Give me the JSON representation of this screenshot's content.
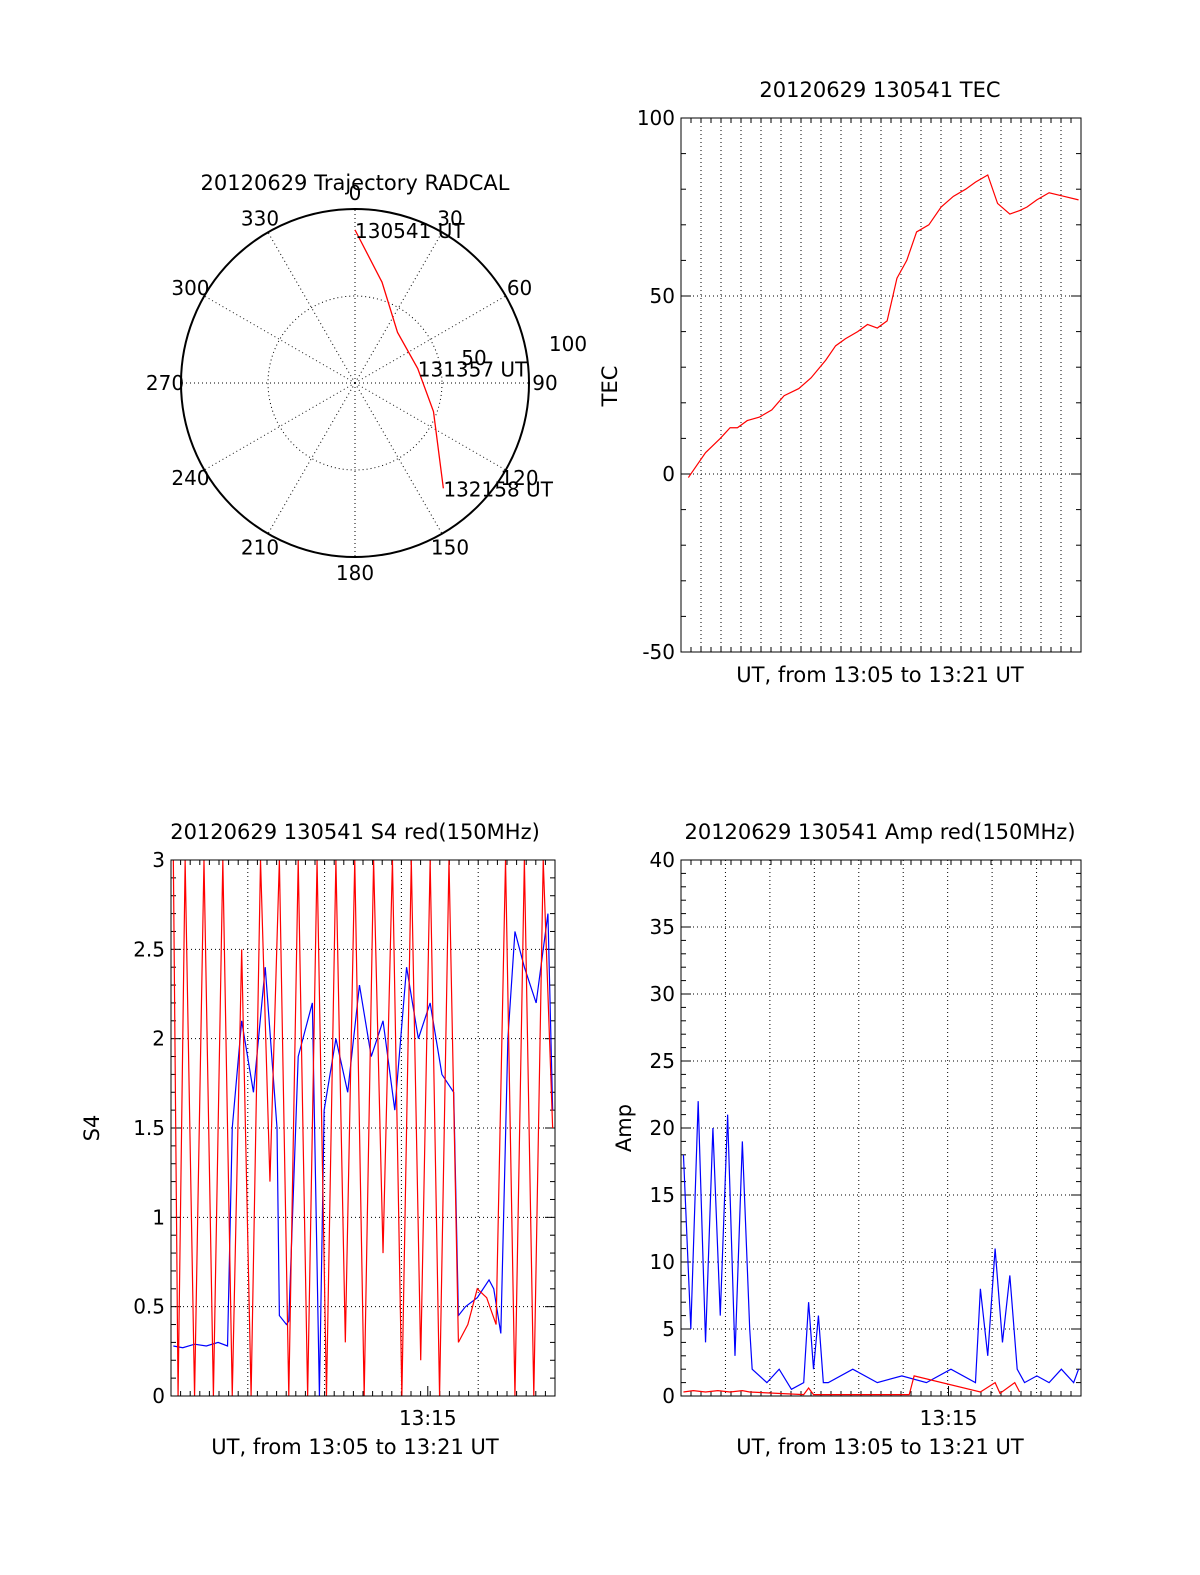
{
  "chart_data": [
    {
      "id": "trajectory",
      "type": "polar",
      "title": "20120629 Trajectory RADCAL",
      "angle_labels": [
        "0",
        "30",
        "60",
        "90",
        "120",
        "150",
        "180",
        "210",
        "240",
        "270",
        "300",
        "330"
      ],
      "radius_labels": [
        "50",
        "100"
      ],
      "rlim": [
        0,
        100
      ],
      "grid": true,
      "line_color": "#ff0000",
      "trajectory": [
        {
          "az": 0,
          "r": 88
        },
        {
          "az": 15,
          "r": 60
        },
        {
          "az": 40,
          "r": 38
        },
        {
          "az": 77,
          "r": 37
        },
        {
          "az": 110,
          "r": 48
        },
        {
          "az": 140,
          "r": 79
        }
      ],
      "annotations": [
        {
          "text": "130541 UT",
          "az": 0,
          "r": 88
        },
        {
          "text": "131357 UT",
          "az": 77,
          "r": 37
        },
        {
          "text": "132158 UT",
          "az": 140,
          "r": 79
        }
      ]
    },
    {
      "id": "tec",
      "type": "line",
      "title": "20120629 130541 TEC",
      "xlabel": "UT, from 13:05 to 13:21 UT",
      "ylabel": "TEC",
      "xlim": [
        0,
        16.3
      ],
      "ylim": [
        -50,
        100
      ],
      "yticks": [
        -50,
        0,
        50,
        100
      ],
      "grid": true,
      "series": [
        {
          "color": "#ff0000",
          "x": [
            0.3,
            1.0,
            1.6,
            2.0,
            2.3,
            2.7,
            3.2,
            3.7,
            4.2,
            4.8,
            5.3,
            5.9,
            6.3,
            6.7,
            7.2,
            7.6,
            8.0,
            8.4,
            8.8,
            9.2,
            9.6,
            10.1,
            10.6,
            11.1,
            11.6,
            12.0,
            12.5,
            12.9,
            13.4,
            13.8,
            14.1,
            14.5,
            15.0,
            15.6,
            16.2
          ],
          "y": [
            -1,
            6,
            10,
            13,
            13,
            15,
            16,
            18,
            22,
            24,
            27,
            32,
            36,
            38,
            40,
            42,
            41,
            43,
            55,
            60,
            68,
            70,
            75,
            78,
            80,
            82,
            84,
            76,
            73,
            74,
            75,
            77,
            79,
            78,
            77
          ]
        }
      ]
    },
    {
      "id": "s4",
      "type": "line",
      "title": "20120629 130541 S4 red(150MHz)",
      "xlabel": "UT, from 13:05 to 13:21 UT",
      "ylabel": "S4",
      "xlim": [
        0,
        16.3
      ],
      "ylim": [
        0,
        3
      ],
      "xticks": [
        {
          "value": 10.9,
          "label": "13:15"
        }
      ],
      "yticks": [
        0,
        0.5,
        1,
        1.5,
        2,
        2.5,
        3
      ],
      "grid": true,
      "series": [
        {
          "color": "#0000ff",
          "x": [
            0.1,
            0.5,
            1.0,
            1.5,
            2.0,
            2.4,
            2.6,
            3.0,
            3.5,
            4.0,
            4.5,
            4.6,
            4.9,
            5.0,
            5.4,
            6.0,
            6.3,
            6.5,
            7.0,
            7.5,
            8.0,
            8.5,
            9.0,
            9.5,
            10.0,
            10.5,
            11.0,
            11.5,
            12.0,
            12.2,
            12.5,
            13.0,
            13.5,
            13.7,
            14.0,
            14.3,
            14.6,
            15.0,
            15.5,
            16.0,
            16.2
          ],
          "y": [
            0.28,
            0.27,
            0.29,
            0.28,
            0.3,
            0.28,
            1.5,
            2.1,
            1.7,
            2.4,
            1.5,
            0.45,
            0.4,
            0.42,
            1.9,
            2.2,
            0.0,
            1.6,
            2.0,
            1.7,
            2.3,
            1.9,
            2.1,
            1.6,
            2.4,
            2.0,
            2.2,
            1.8,
            1.7,
            0.45,
            0.5,
            0.55,
            0.65,
            0.6,
            0.35,
            2.0,
            2.6,
            2.4,
            2.2,
            2.7,
            1.6
          ]
        },
        {
          "color": "#ff0000",
          "x": [
            0.1,
            0.3,
            0.6,
            1.0,
            1.4,
            1.8,
            2.2,
            2.6,
            3.0,
            3.4,
            3.8,
            4.2,
            4.6,
            5.0,
            5.4,
            5.8,
            6.2,
            6.6,
            7.0,
            7.4,
            7.8,
            8.2,
            8.6,
            9.0,
            9.4,
            9.8,
            10.2,
            10.6,
            11.0,
            11.4,
            11.8,
            12.2,
            12.6,
            13.0,
            13.4,
            13.8,
            14.2,
            14.6,
            15.0,
            15.4,
            15.8,
            16.2
          ],
          "y": [
            3,
            0,
            3,
            0,
            3,
            0,
            3,
            0,
            2.5,
            0,
            3,
            1.2,
            3,
            0,
            3,
            0,
            3,
            0,
            3,
            0.3,
            3,
            0,
            3,
            0.8,
            3,
            0,
            3,
            0.2,
            3,
            0,
            3,
            0.3,
            0.4,
            0.6,
            0.55,
            0.4,
            3,
            0,
            3,
            0,
            3,
            1.5
          ]
        }
      ]
    },
    {
      "id": "amp",
      "type": "line",
      "title": "20120629 130541 Amp red(150MHz)",
      "xlabel": "UT, from 13:05 to 13:21 UT",
      "ylabel": "Amp",
      "xlim": [
        0,
        16.3
      ],
      "ylim": [
        0,
        40
      ],
      "xticks": [
        {
          "value": 10.9,
          "label": "13:15"
        }
      ],
      "yticks": [
        0,
        5,
        10,
        15,
        20,
        25,
        30,
        35,
        40
      ],
      "grid": true,
      "series": [
        {
          "color": "#0000ff",
          "x": [
            0.1,
            0.4,
            0.7,
            1.0,
            1.3,
            1.6,
            1.9,
            2.2,
            2.5,
            2.8,
            2.9,
            3.5,
            4.0,
            4.5,
            5.0,
            5.2,
            5.4,
            5.6,
            5.8,
            6.0,
            7.0,
            8.0,
            9.0,
            10.0,
            11.0,
            12.0,
            12.2,
            12.5,
            12.8,
            13.1,
            13.4,
            13.7,
            14.0,
            14.5,
            15.0,
            15.5,
            16.0,
            16.2
          ],
          "y": [
            18,
            5,
            22,
            4,
            20,
            6,
            21,
            3,
            19,
            5,
            2,
            1,
            2,
            0.5,
            1,
            7,
            2,
            6,
            1,
            1,
            2,
            1,
            1.5,
            1,
            2,
            1,
            8,
            3,
            11,
            4,
            9,
            2,
            1,
            1.5,
            1,
            2,
            1,
            2
          ]
        },
        {
          "color": "#ff0000",
          "x": [
            0.1,
            0.5,
            1.0,
            1.5,
            2.0,
            2.5,
            2.8,
            5.0,
            5.2,
            5.4,
            9.3,
            9.5,
            12.2,
            12.8,
            13.0,
            13.6,
            13.8
          ],
          "y": [
            0.3,
            0.4,
            0.3,
            0.4,
            0.3,
            0.4,
            0.3,
            0.1,
            0.6,
            0.1,
            0.1,
            1.5,
            0.3,
            1.0,
            0.2,
            1.0,
            0.3
          ]
        }
      ]
    }
  ]
}
